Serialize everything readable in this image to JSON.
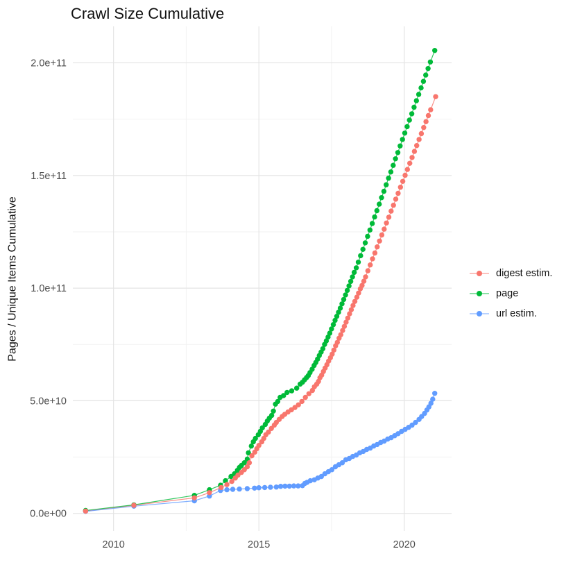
{
  "page": {
    "background": "#ffffff"
  },
  "chart_data": {
    "type": "scatter",
    "title": "Crawl Size Cumulative",
    "xlabel": "",
    "ylabel": "Pages / Unique Items Cumulative",
    "legend_position": "right",
    "grid": {
      "major_color": "#e4e4e4",
      "minor_color": "#f2f2f2",
      "text_color": "#4d4d4d"
    },
    "x_range": [
      2008.6,
      2021.63
    ],
    "y_range": [
      -7800000000.0,
      216200000000.0
    ],
    "x_ticks": [
      {
        "v": 2010,
        "label": "2010"
      },
      {
        "v": 2015,
        "label": "2015"
      },
      {
        "v": 2020,
        "label": "2020"
      }
    ],
    "x_minor": [
      2012.5,
      2017.5
    ],
    "y_ticks": [
      {
        "v": 0,
        "label": "0.0e+00"
      },
      {
        "v": 50000000000.0,
        "label": "5.0e+10"
      },
      {
        "v": 100000000000.0,
        "label": "1.0e+11"
      },
      {
        "v": 150000000000.0,
        "label": "1.5e+11"
      },
      {
        "v": 200000000000.0,
        "label": "2.0e+11"
      }
    ],
    "y_minor": [
      25000000000.0,
      75000000000.0,
      125000000000.0,
      175000000000.0
    ],
    "series": [
      {
        "name": "digest estim.",
        "color": "#F8766D",
        "points": [
          [
            2009.04,
            1000000000.0
          ],
          [
            2010.7,
            3600000000.0
          ],
          [
            2012.78,
            6900000000.0
          ],
          [
            2013.3,
            9200000000.0
          ],
          [
            2013.7,
            11500000000.0
          ],
          [
            2013.9,
            12800000000.0
          ],
          [
            2014.07,
            14200000000.0
          ],
          [
            2014.19,
            15700000000.0
          ],
          [
            2014.28,
            17000000000.0
          ],
          [
            2014.4,
            18200000000.0
          ],
          [
            2014.5,
            19400000000.0
          ],
          [
            2014.6,
            20700000000.0
          ],
          [
            2014.67,
            22500000000.0
          ],
          [
            2014.76,
            25600000000.0
          ],
          [
            2014.86,
            27200000000.0
          ],
          [
            2014.93,
            28700000000.0
          ],
          [
            2015.0,
            30200000000.0
          ],
          [
            2015.1,
            31800000000.0
          ],
          [
            2015.17,
            33300000000.0
          ],
          [
            2015.24,
            34900000000.0
          ],
          [
            2015.33,
            36100000000.0
          ],
          [
            2015.43,
            37700000000.0
          ],
          [
            2015.53,
            39200000000.0
          ],
          [
            2015.6,
            40400000000.0
          ],
          [
            2015.7,
            41700000000.0
          ],
          [
            2015.8,
            43000000000.0
          ],
          [
            2015.89,
            44000000000.0
          ],
          [
            2016.0,
            45000000000.0
          ],
          [
            2016.12,
            46000000000.0
          ],
          [
            2016.24,
            47000000000.0
          ],
          [
            2016.36,
            48200000000.0
          ],
          [
            2016.48,
            49700000000.0
          ],
          [
            2016.6,
            51500000000.0
          ],
          [
            2016.72,
            53100000000.0
          ],
          [
            2016.84,
            54600000000.0
          ],
          [
            2016.91,
            56200000000.0
          ],
          [
            2016.99,
            57400000000.0
          ],
          [
            2017.05,
            58600000000.0
          ],
          [
            2017.1,
            60200000000.0
          ],
          [
            2017.16,
            61400000000.0
          ],
          [
            2017.22,
            63000000000.0
          ],
          [
            2017.28,
            64500000000.0
          ],
          [
            2017.34,
            66000000000.0
          ],
          [
            2017.4,
            67600000000.0
          ],
          [
            2017.46,
            69100000000.0
          ],
          [
            2017.52,
            70700000000.0
          ],
          [
            2017.58,
            72500000000.0
          ],
          [
            2017.64,
            74400000000.0
          ],
          [
            2017.7,
            75900000000.0
          ],
          [
            2017.76,
            77800000000.0
          ],
          [
            2017.82,
            79300000000.0
          ],
          [
            2017.88,
            81200000000.0
          ],
          [
            2017.94,
            83000000000.0
          ],
          [
            2018.0,
            84900000000.0
          ],
          [
            2018.06,
            86700000000.0
          ],
          [
            2018.12,
            88600000000.0
          ],
          [
            2018.18,
            90400000000.0
          ],
          [
            2018.24,
            92300000000.0
          ],
          [
            2018.3,
            94100000000.0
          ],
          [
            2018.37,
            96000000000.0
          ],
          [
            2018.43,
            97800000000.0
          ],
          [
            2018.49,
            99700000000.0
          ],
          [
            2018.55,
            101200000000.0
          ],
          [
            2018.61,
            103100000000.0
          ],
          [
            2018.67,
            105000000000.0
          ],
          [
            2018.75,
            107700000000.0
          ],
          [
            2018.83,
            110300000000.0
          ],
          [
            2018.91,
            113000000000.0
          ],
          [
            2018.99,
            115600000000.0
          ],
          [
            2019.07,
            118300000000.0
          ],
          [
            2019.15,
            120900000000.0
          ],
          [
            2019.23,
            123600000000.0
          ],
          [
            2019.31,
            126200000000.0
          ],
          [
            2019.39,
            128900000000.0
          ],
          [
            2019.47,
            131500000000.0
          ],
          [
            2019.55,
            134200000000.0
          ],
          [
            2019.63,
            136800000000.0
          ],
          [
            2019.71,
            139500000000.0
          ],
          [
            2019.79,
            142100000000.0
          ],
          [
            2019.87,
            144800000000.0
          ],
          [
            2019.95,
            147400000000.0
          ],
          [
            2020.03,
            150100000000.0
          ],
          [
            2020.11,
            152700000000.0
          ],
          [
            2020.19,
            155400000000.0
          ],
          [
            2020.27,
            158000000000.0
          ],
          [
            2020.35,
            160700000000.0
          ],
          [
            2020.43,
            163300000000.0
          ],
          [
            2020.51,
            166000000000.0
          ],
          [
            2020.59,
            168600000000.0
          ],
          [
            2020.67,
            171300000000.0
          ],
          [
            2020.75,
            173900000000.0
          ],
          [
            2020.83,
            176600000000.0
          ],
          [
            2020.91,
            179200000000.0
          ],
          [
            2021.08,
            185000000000.0
          ]
        ]
      },
      {
        "name": "page",
        "color": "#00BA38",
        "points": [
          [
            2009.04,
            1300000000.0
          ],
          [
            2010.7,
            3800000000.0
          ],
          [
            2012.78,
            8000000000.0
          ],
          [
            2013.3,
            10500000000.0
          ],
          [
            2013.68,
            12500000000.0
          ],
          [
            2013.85,
            14500000000.0
          ],
          [
            2014.04,
            16400000000.0
          ],
          [
            2014.16,
            17600000000.0
          ],
          [
            2014.26,
            19100000000.0
          ],
          [
            2014.33,
            20400000000.0
          ],
          [
            2014.4,
            21300000000.0
          ],
          [
            2014.5,
            22500000000.0
          ],
          [
            2014.6,
            24100000000.0
          ],
          [
            2014.64,
            26900000000.0
          ],
          [
            2014.74,
            29900000000.0
          ],
          [
            2014.81,
            31800000000.0
          ],
          [
            2014.88,
            33300000000.0
          ],
          [
            2014.98,
            34900000000.0
          ],
          [
            2015.05,
            36400000000.0
          ],
          [
            2015.12,
            38000000000.0
          ],
          [
            2015.22,
            39500000000.0
          ],
          [
            2015.29,
            41000000000.0
          ],
          [
            2015.36,
            42300000000.0
          ],
          [
            2015.44,
            43500000000.0
          ],
          [
            2015.5,
            45400000000.0
          ],
          [
            2015.57,
            48500000000.0
          ],
          [
            2015.65,
            49700000000.0
          ],
          [
            2015.73,
            51500000000.0
          ],
          [
            2015.85,
            52300000000.0
          ],
          [
            2015.97,
            53700000000.0
          ],
          [
            2016.13,
            54400000000.0
          ],
          [
            2016.3,
            55600000000.0
          ],
          [
            2016.42,
            57400000000.0
          ],
          [
            2016.5,
            58200000000.0
          ],
          [
            2016.57,
            59300000000.0
          ],
          [
            2016.64,
            60300000000.0
          ],
          [
            2016.7,
            61200000000.0
          ],
          [
            2016.76,
            62500000000.0
          ],
          [
            2016.83,
            64000000000.0
          ],
          [
            2016.9,
            65700000000.0
          ],
          [
            2016.96,
            67000000000.0
          ],
          [
            2017.02,
            68500000000.0
          ],
          [
            2017.08,
            70100000000.0
          ],
          [
            2017.14,
            71600000000.0
          ],
          [
            2017.2,
            73100000000.0
          ],
          [
            2017.26,
            75000000000.0
          ],
          [
            2017.32,
            76600000000.0
          ],
          [
            2017.38,
            78300000000.0
          ],
          [
            2017.44,
            80000000000.0
          ],
          [
            2017.5,
            81900000000.0
          ],
          [
            2017.56,
            83800000000.0
          ],
          [
            2017.62,
            85700000000.0
          ],
          [
            2017.68,
            87500000000.0
          ],
          [
            2017.74,
            89300000000.0
          ],
          [
            2017.8,
            91100000000.0
          ],
          [
            2017.86,
            93000000000.0
          ],
          [
            2017.92,
            95000000000.0
          ],
          [
            2017.98,
            97000000000.0
          ],
          [
            2018.04,
            99000000000.0
          ],
          [
            2018.1,
            101000000000.0
          ],
          [
            2018.16,
            103000000000.0
          ],
          [
            2018.22,
            105000000000.0
          ],
          [
            2018.28,
            107000000000.0
          ],
          [
            2018.35,
            109000000000.0
          ],
          [
            2018.42,
            111500000000.0
          ],
          [
            2018.5,
            114400000000.0
          ],
          [
            2018.58,
            117200000000.0
          ],
          [
            2018.66,
            120100000000.0
          ],
          [
            2018.74,
            123000000000.0
          ],
          [
            2018.82,
            125800000000.0
          ],
          [
            2018.9,
            128700000000.0
          ],
          [
            2018.98,
            131600000000.0
          ],
          [
            2019.06,
            134400000000.0
          ],
          [
            2019.14,
            137300000000.0
          ],
          [
            2019.22,
            140200000000.0
          ],
          [
            2019.3,
            143000000000.0
          ],
          [
            2019.38,
            145900000000.0
          ],
          [
            2019.46,
            148800000000.0
          ],
          [
            2019.54,
            151600000000.0
          ],
          [
            2019.62,
            154500000000.0
          ],
          [
            2019.7,
            157400000000.0
          ],
          [
            2019.78,
            160200000000.0
          ],
          [
            2019.86,
            163100000000.0
          ],
          [
            2019.94,
            166000000000.0
          ],
          [
            2020.02,
            168800000000.0
          ],
          [
            2020.1,
            171700000000.0
          ],
          [
            2020.18,
            174600000000.0
          ],
          [
            2020.26,
            177400000000.0
          ],
          [
            2020.34,
            180300000000.0
          ],
          [
            2020.42,
            183200000000.0
          ],
          [
            2020.5,
            186000000000.0
          ],
          [
            2020.58,
            188900000000.0
          ],
          [
            2020.66,
            191800000000.0
          ],
          [
            2020.74,
            194600000000.0
          ],
          [
            2020.82,
            197500000000.0
          ],
          [
            2020.9,
            200400000000.0
          ],
          [
            2021.05,
            205500000000.0
          ]
        ]
      },
      {
        "name": "url estim.",
        "color": "#619CFF",
        "points": [
          [
            2009.04,
            900000000.0
          ],
          [
            2010.7,
            3200000000.0
          ],
          [
            2012.78,
            5600000000.0
          ],
          [
            2013.3,
            7700000000.0
          ],
          [
            2013.68,
            10200000000.0
          ],
          [
            2013.9,
            10500000000.0
          ],
          [
            2014.1,
            10700000000.0
          ],
          [
            2014.33,
            10800000000.0
          ],
          [
            2014.6,
            11000000000.0
          ],
          [
            2014.85,
            11200000000.0
          ],
          [
            2015.0,
            11400000000.0
          ],
          [
            2015.2,
            11500000000.0
          ],
          [
            2015.4,
            11600000000.0
          ],
          [
            2015.6,
            11700000000.0
          ],
          [
            2015.75,
            12000000000.0
          ],
          [
            2015.9,
            12100000000.0
          ],
          [
            2016.05,
            12100000000.0
          ],
          [
            2016.2,
            12200000000.0
          ],
          [
            2016.35,
            12200000000.0
          ],
          [
            2016.5,
            12300000000.0
          ],
          [
            2016.58,
            13300000000.0
          ],
          [
            2016.66,
            13800000000.0
          ],
          [
            2016.77,
            14500000000.0
          ],
          [
            2016.91,
            14900000000.0
          ],
          [
            2017.03,
            15700000000.0
          ],
          [
            2017.15,
            16400000000.0
          ],
          [
            2017.27,
            17600000000.0
          ],
          [
            2017.39,
            18500000000.0
          ],
          [
            2017.51,
            19400000000.0
          ],
          [
            2017.63,
            20700000000.0
          ],
          [
            2017.75,
            21600000000.0
          ],
          [
            2017.87,
            22500000000.0
          ],
          [
            2017.99,
            23800000000.0
          ],
          [
            2018.11,
            24400000000.0
          ],
          [
            2018.23,
            25300000000.0
          ],
          [
            2018.35,
            25900000000.0
          ],
          [
            2018.47,
            26900000000.0
          ],
          [
            2018.59,
            27500000000.0
          ],
          [
            2018.71,
            28400000000.0
          ],
          [
            2018.83,
            29000000000.0
          ],
          [
            2018.95,
            29900000000.0
          ],
          [
            2019.07,
            30600000000.0
          ],
          [
            2019.19,
            31500000000.0
          ],
          [
            2019.31,
            32100000000.0
          ],
          [
            2019.43,
            33000000000.0
          ],
          [
            2019.55,
            33600000000.0
          ],
          [
            2019.67,
            34500000000.0
          ],
          [
            2019.79,
            35400000000.0
          ],
          [
            2019.91,
            36400000000.0
          ],
          [
            2020.03,
            37300000000.0
          ],
          [
            2020.15,
            38200000000.0
          ],
          [
            2020.27,
            39200000000.0
          ],
          [
            2020.39,
            40400000000.0
          ],
          [
            2020.51,
            41700000000.0
          ],
          [
            2020.6,
            43000000000.0
          ],
          [
            2020.7,
            44400000000.0
          ],
          [
            2020.78,
            45900000000.0
          ],
          [
            2020.85,
            47300000000.0
          ],
          [
            2020.92,
            48900000000.0
          ],
          [
            2020.98,
            50700000000.0
          ],
          [
            2021.05,
            53300000000.0
          ]
        ]
      }
    ]
  }
}
